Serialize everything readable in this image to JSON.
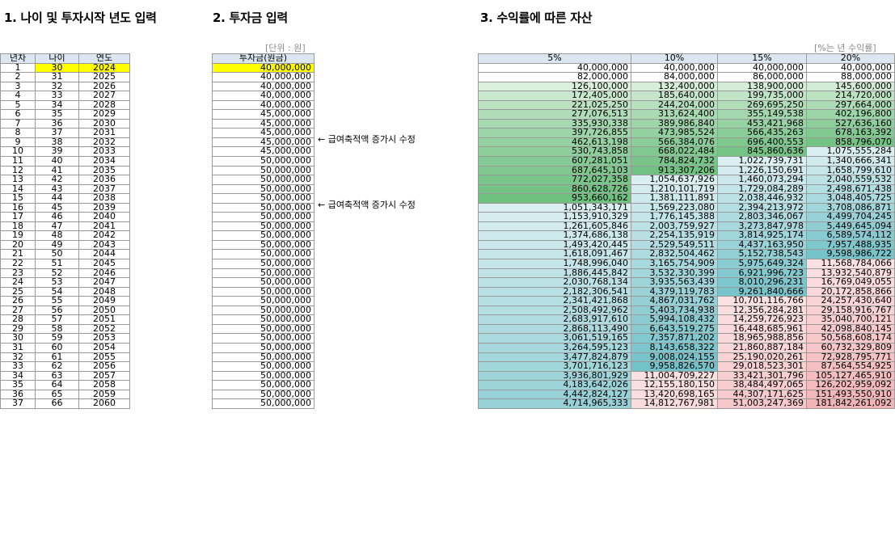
{
  "section1": {
    "title": "1. 나이 및 투자시작 년도 입력",
    "headers": [
      "년차",
      "나이",
      "연도"
    ]
  },
  "section2": {
    "title": "2. 투자금 입력",
    "unit": "[단위 : 원]",
    "header": "투자금(원금)",
    "notes": [
      "← 급여축적액 증가시 수정",
      "← 급여축적액 증가시 수정"
    ]
  },
  "section3": {
    "title": "3. 수익률에 따른 자산",
    "unit": "[%는 년 수익률]",
    "headers": [
      "5%",
      "10%",
      "15%",
      "20%"
    ]
  },
  "colors": {
    "header_bg": "#dce6f1",
    "input_highlight": "#ffff00"
  },
  "rows": [
    [
      "1",
      "30",
      "2024",
      "40,000,000",
      "40,000,000",
      "40,000,000",
      "40,000,000",
      "40,000,000"
    ],
    [
      "2",
      "31",
      "2025",
      "40,000,000",
      "82,000,000",
      "84,000,000",
      "86,000,000",
      "88,000,000"
    ],
    [
      "3",
      "32",
      "2026",
      "40,000,000",
      "126,100,000",
      "132,400,000",
      "138,900,000",
      "145,600,000"
    ],
    [
      "4",
      "33",
      "2027",
      "40,000,000",
      "172,405,000",
      "185,640,000",
      "199,735,000",
      "214,720,000"
    ],
    [
      "5",
      "34",
      "2028",
      "40,000,000",
      "221,025,250",
      "244,204,000",
      "269,695,250",
      "297,664,000"
    ],
    [
      "6",
      "35",
      "2029",
      "45,000,000",
      "277,076,513",
      "313,624,400",
      "355,149,538",
      "402,196,800"
    ],
    [
      "7",
      "36",
      "2030",
      "45,000,000",
      "335,930,338",
      "389,986,840",
      "453,421,968",
      "527,636,160"
    ],
    [
      "8",
      "37",
      "2031",
      "45,000,000",
      "397,726,855",
      "473,985,524",
      "566,435,263",
      "678,163,392"
    ],
    [
      "9",
      "38",
      "2032",
      "45,000,000",
      "462,613,198",
      "566,384,076",
      "696,400,553",
      "858,796,070"
    ],
    [
      "10",
      "39",
      "2033",
      "45,000,000",
      "530,743,858",
      "668,022,484",
      "845,860,636",
      "1,075,555,284"
    ],
    [
      "11",
      "40",
      "2034",
      "50,000,000",
      "607,281,051",
      "784,824,732",
      "1,022,739,731",
      "1,340,666,341"
    ],
    [
      "12",
      "41",
      "2035",
      "50,000,000",
      "687,645,103",
      "913,307,206",
      "1,226,150,691",
      "1,658,799,610"
    ],
    [
      "13",
      "42",
      "2036",
      "50,000,000",
      "772,027,358",
      "1,054,637,926",
      "1,460,073,294",
      "2,040,559,532"
    ],
    [
      "14",
      "43",
      "2037",
      "50,000,000",
      "860,628,726",
      "1,210,101,719",
      "1,729,084,289",
      "2,498,671,438"
    ],
    [
      "15",
      "44",
      "2038",
      "50,000,000",
      "953,660,162",
      "1,381,111,891",
      "2,038,446,932",
      "3,048,405,725"
    ],
    [
      "16",
      "45",
      "2039",
      "50,000,000",
      "1,051,343,171",
      "1,569,223,080",
      "2,394,213,972",
      "3,708,086,871"
    ],
    [
      "17",
      "46",
      "2040",
      "50,000,000",
      "1,153,910,329",
      "1,776,145,388",
      "2,803,346,067",
      "4,499,704,245"
    ],
    [
      "18",
      "47",
      "2041",
      "50,000,000",
      "1,261,605,846",
      "2,003,759,927",
      "3,273,847,978",
      "5,449,645,094"
    ],
    [
      "19",
      "48",
      "2042",
      "50,000,000",
      "1,374,686,138",
      "2,254,135,919",
      "3,814,925,174",
      "6,589,574,112"
    ],
    [
      "20",
      "49",
      "2043",
      "50,000,000",
      "1,493,420,445",
      "2,529,549,511",
      "4,437,163,950",
      "7,957,488,935"
    ],
    [
      "21",
      "50",
      "2044",
      "50,000,000",
      "1,618,091,467",
      "2,832,504,462",
      "5,152,738,543",
      "9,598,986,722"
    ],
    [
      "22",
      "51",
      "2045",
      "50,000,000",
      "1,748,996,040",
      "3,165,754,909",
      "5,975,649,324",
      "11,568,784,066"
    ],
    [
      "23",
      "52",
      "2046",
      "50,000,000",
      "1,886,445,842",
      "3,532,330,399",
      "6,921,996,723",
      "13,932,540,879"
    ],
    [
      "24",
      "53",
      "2047",
      "50,000,000",
      "2,030,768,134",
      "3,935,563,439",
      "8,010,296,231",
      "16,769,049,055"
    ],
    [
      "25",
      "54",
      "2048",
      "50,000,000",
      "2,182,306,541",
      "4,379,119,783",
      "9,261,840,666",
      "20,172,858,866"
    ],
    [
      "26",
      "55",
      "2049",
      "50,000,000",
      "2,341,421,868",
      "4,867,031,762",
      "10,701,116,766",
      "24,257,430,640"
    ],
    [
      "27",
      "56",
      "2050",
      "50,000,000",
      "2,508,492,962",
      "5,403,734,938",
      "12,356,284,281",
      "29,158,916,767"
    ],
    [
      "28",
      "57",
      "2051",
      "50,000,000",
      "2,683,917,610",
      "5,994,108,432",
      "14,259,726,923",
      "35,040,700,121"
    ],
    [
      "29",
      "58",
      "2052",
      "50,000,000",
      "2,868,113,490",
      "6,643,519,275",
      "16,448,685,961",
      "42,098,840,145"
    ],
    [
      "30",
      "59",
      "2053",
      "50,000,000",
      "3,061,519,165",
      "7,357,871,202",
      "18,965,988,856",
      "50,568,608,174"
    ],
    [
      "31",
      "60",
      "2054",
      "50,000,000",
      "3,264,595,123",
      "8,143,658,322",
      "21,860,887,184",
      "60,732,329,809"
    ],
    [
      "32",
      "61",
      "2055",
      "50,000,000",
      "3,477,824,879",
      "9,008,024,155",
      "25,190,020,261",
      "72,928,795,771"
    ],
    [
      "33",
      "62",
      "2056",
      "50,000,000",
      "3,701,716,123",
      "9,958,826,570",
      "29,018,523,301",
      "87,564,554,925"
    ],
    [
      "34",
      "63",
      "2057",
      "50,000,000",
      "3,936,801,929",
      "11,004,709,227",
      "33,421,301,796",
      "105,127,465,910"
    ],
    [
      "35",
      "64",
      "2058",
      "50,000,000",
      "4,183,642,026",
      "12,155,180,150",
      "38,484,497,065",
      "126,202,959,092"
    ],
    [
      "36",
      "65",
      "2059",
      "50,000,000",
      "4,442,824,127",
      "13,420,698,165",
      "44,307,171,625",
      "151,493,550,910"
    ],
    [
      "37",
      "66",
      "2060",
      "50,000,000",
      "4,714,965,333",
      "14,812,767,981",
      "51,003,247,369",
      "181,842,261,092"
    ]
  ]
}
